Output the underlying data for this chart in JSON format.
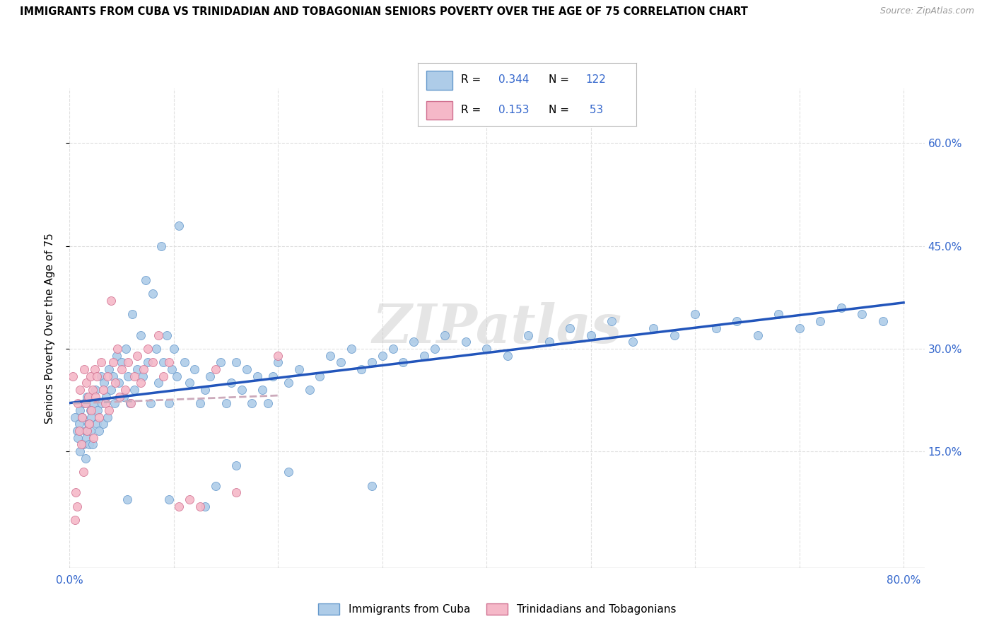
{
  "title": "IMMIGRANTS FROM CUBA VS TRINIDADIAN AND TOBAGONIAN SENIORS POVERTY OVER THE AGE OF 75 CORRELATION CHART",
  "source": "Source: ZipAtlas.com",
  "ylabel": "Seniors Poverty Over the Age of 75",
  "ylabel_right_ticks": [
    "15.0%",
    "30.0%",
    "45.0%",
    "60.0%"
  ],
  "ylabel_right_values": [
    0.15,
    0.3,
    0.45,
    0.6
  ],
  "xlim": [
    0.0,
    0.82
  ],
  "ylim": [
    -0.02,
    0.68
  ],
  "watermark": "ZIPatlas",
  "legend_label1": "Immigrants from Cuba",
  "legend_label2": "Trinidadians and Tobagonians",
  "color_cuba": "#aecce8",
  "color_tt": "#f5b8c8",
  "edge_color_cuba": "#6699cc",
  "edge_color_tt": "#d07090",
  "line_color_cuba": "#2255bb",
  "line_color_tt": "#ccaabb",
  "background_color": "#ffffff",
  "grid_color": "#dddddd",
  "cuba_x": [
    0.005,
    0.007,
    0.008,
    0.009,
    0.01,
    0.01,
    0.012,
    0.013,
    0.014,
    0.015,
    0.015,
    0.016,
    0.017,
    0.018,
    0.019,
    0.02,
    0.02,
    0.021,
    0.022,
    0.023,
    0.025,
    0.026,
    0.027,
    0.028,
    0.03,
    0.031,
    0.032,
    0.033,
    0.035,
    0.036,
    0.038,
    0.04,
    0.042,
    0.043,
    0.045,
    0.047,
    0.05,
    0.052,
    0.054,
    0.056,
    0.058,
    0.06,
    0.062,
    0.065,
    0.068,
    0.07,
    0.073,
    0.075,
    0.078,
    0.08,
    0.083,
    0.085,
    0.088,
    0.09,
    0.093,
    0.095,
    0.098,
    0.1,
    0.103,
    0.105,
    0.11,
    0.115,
    0.12,
    0.125,
    0.13,
    0.135,
    0.14,
    0.145,
    0.15,
    0.155,
    0.16,
    0.165,
    0.17,
    0.175,
    0.18,
    0.185,
    0.19,
    0.195,
    0.2,
    0.21,
    0.22,
    0.23,
    0.24,
    0.25,
    0.26,
    0.27,
    0.28,
    0.29,
    0.3,
    0.31,
    0.32,
    0.33,
    0.34,
    0.35,
    0.36,
    0.38,
    0.4,
    0.42,
    0.44,
    0.46,
    0.48,
    0.5,
    0.52,
    0.54,
    0.56,
    0.58,
    0.6,
    0.62,
    0.64,
    0.66,
    0.68,
    0.7,
    0.72,
    0.74,
    0.76,
    0.78,
    0.055,
    0.095,
    0.13,
    0.16,
    0.21,
    0.29
  ],
  "cuba_y": [
    0.2,
    0.18,
    0.17,
    0.19,
    0.15,
    0.21,
    0.2,
    0.16,
    0.22,
    0.18,
    0.14,
    0.17,
    0.23,
    0.19,
    0.16,
    0.21,
    0.18,
    0.2,
    0.16,
    0.22,
    0.24,
    0.19,
    0.21,
    0.18,
    0.26,
    0.22,
    0.19,
    0.25,
    0.23,
    0.2,
    0.27,
    0.24,
    0.26,
    0.22,
    0.29,
    0.25,
    0.28,
    0.23,
    0.3,
    0.26,
    0.22,
    0.35,
    0.24,
    0.27,
    0.32,
    0.26,
    0.4,
    0.28,
    0.22,
    0.38,
    0.3,
    0.25,
    0.45,
    0.28,
    0.32,
    0.22,
    0.27,
    0.3,
    0.26,
    0.48,
    0.28,
    0.25,
    0.27,
    0.22,
    0.24,
    0.26,
    0.1,
    0.28,
    0.22,
    0.25,
    0.28,
    0.24,
    0.27,
    0.22,
    0.26,
    0.24,
    0.22,
    0.26,
    0.28,
    0.25,
    0.27,
    0.24,
    0.26,
    0.29,
    0.28,
    0.3,
    0.27,
    0.28,
    0.29,
    0.3,
    0.28,
    0.31,
    0.29,
    0.3,
    0.32,
    0.31,
    0.3,
    0.29,
    0.32,
    0.31,
    0.33,
    0.32,
    0.34,
    0.31,
    0.33,
    0.32,
    0.35,
    0.33,
    0.34,
    0.32,
    0.35,
    0.33,
    0.34,
    0.36,
    0.35,
    0.34,
    0.08,
    0.08,
    0.07,
    0.13,
    0.12,
    0.1
  ],
  "tt_x": [
    0.003,
    0.005,
    0.006,
    0.007,
    0.008,
    0.009,
    0.01,
    0.011,
    0.012,
    0.013,
    0.014,
    0.015,
    0.016,
    0.017,
    0.018,
    0.019,
    0.02,
    0.021,
    0.022,
    0.023,
    0.024,
    0.025,
    0.026,
    0.028,
    0.03,
    0.032,
    0.034,
    0.036,
    0.038,
    0.04,
    0.042,
    0.044,
    0.046,
    0.048,
    0.05,
    0.053,
    0.056,
    0.059,
    0.062,
    0.065,
    0.068,
    0.071,
    0.075,
    0.08,
    0.085,
    0.09,
    0.095,
    0.105,
    0.115,
    0.125,
    0.14,
    0.16,
    0.2
  ],
  "tt_y": [
    0.26,
    0.05,
    0.09,
    0.07,
    0.22,
    0.18,
    0.24,
    0.16,
    0.2,
    0.12,
    0.27,
    0.22,
    0.25,
    0.18,
    0.23,
    0.19,
    0.26,
    0.21,
    0.24,
    0.17,
    0.27,
    0.23,
    0.26,
    0.2,
    0.28,
    0.24,
    0.22,
    0.26,
    0.21,
    0.37,
    0.28,
    0.25,
    0.3,
    0.23,
    0.27,
    0.24,
    0.28,
    0.22,
    0.26,
    0.29,
    0.25,
    0.27,
    0.3,
    0.28,
    0.32,
    0.26,
    0.28,
    0.07,
    0.08,
    0.07,
    0.27,
    0.09,
    0.29
  ]
}
